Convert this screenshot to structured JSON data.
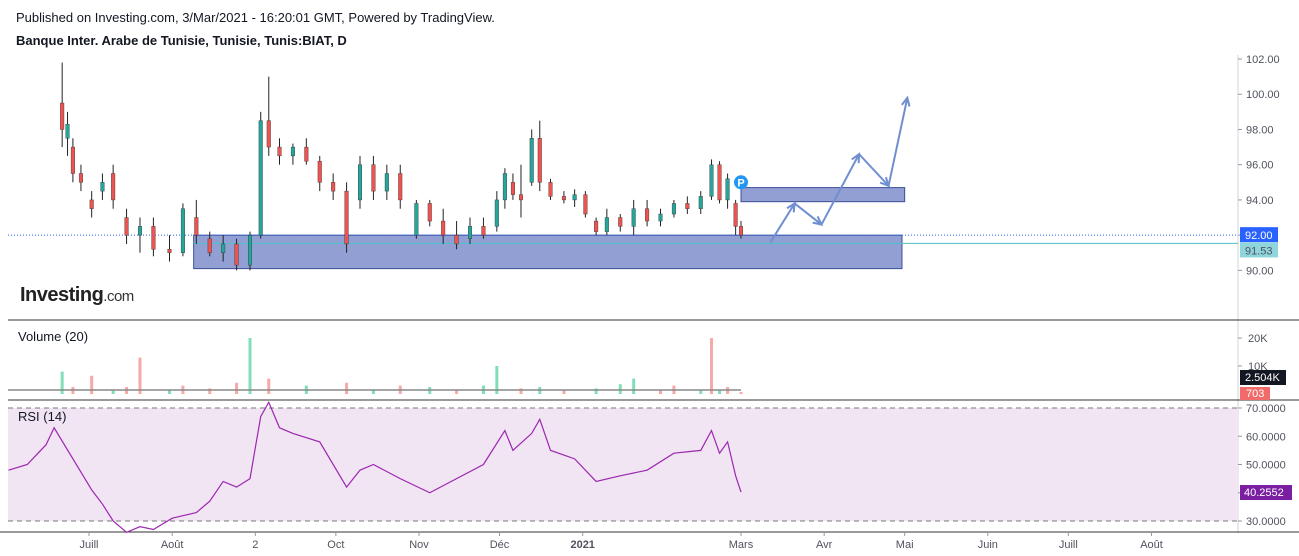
{
  "header": {
    "published": "Published on Investing.com, 3/Mar/2021 - 16:20:01 GMT, Powered by TradingView.",
    "symbol": "Banque Inter. Arabe de Tunisie, Tunisie, Tunis:BIAT, D"
  },
  "logo": {
    "brand": "Investing",
    "suffix": ".com"
  },
  "colors": {
    "up": "#26a69a",
    "down": "#ef5350",
    "zone": "#6c7fc4",
    "arrow": "#6f8fd0",
    "price_line": "#2962ff",
    "ma_line": "#4dc1c8",
    "rsi_line": "#9c27b0",
    "rsi_band": "#f1e4f3",
    "vol_up": "#7fe0b8",
    "vol_down": "#f7a9a7"
  },
  "chart_data": [
    {
      "type": "candlestick",
      "ylim": [
        89.0,
        102.0
      ],
      "price_axis_ticks": [
        "102.00",
        "100.00",
        "98.00",
        "96.00",
        "94.00",
        "92.00",
        "90.00"
      ],
      "last_price": "92.00",
      "ma_value": "91.53",
      "marker_label": "P",
      "annotations": {
        "support_zone": {
          "from": "2020-08-09",
          "to": "2021-04-30",
          "y_low": 90.1,
          "y_high": 92.0
        },
        "resistance_zone": {
          "from": "2021-03-01",
          "to": "2021-05-01",
          "y_low": 93.9,
          "y_high": 94.7
        },
        "projection_path": [
          [
            "2021-03-12",
            91.6
          ],
          [
            "2021-03-21",
            93.8
          ],
          [
            "2021-03-31",
            92.6
          ],
          [
            "2021-04-14",
            96.6
          ],
          [
            "2021-04-25",
            94.8
          ],
          [
            "2021-05-02",
            99.8
          ]
        ]
      },
      "candles": [
        [
          "2020-06-21",
          99.5,
          101.8,
          97.0,
          98.0
        ],
        [
          "2020-06-23",
          97.5,
          99.0,
          96.5,
          98.3
        ],
        [
          "2020-06-25",
          97.0,
          97.5,
          95.0,
          95.5
        ],
        [
          "2020-06-28",
          95.5,
          96.0,
          94.5,
          95.0
        ],
        [
          "2020-07-02",
          94.0,
          94.5,
          93.0,
          93.5
        ],
        [
          "2020-07-06",
          94.5,
          95.5,
          94.0,
          95.0
        ],
        [
          "2020-07-10",
          95.5,
          96.0,
          93.5,
          94.0
        ],
        [
          "2020-07-15",
          93.0,
          93.5,
          91.5,
          92.0
        ],
        [
          "2020-07-20",
          92.0,
          93.0,
          91.0,
          92.5
        ],
        [
          "2020-07-25",
          92.5,
          93.0,
          90.8,
          91.2
        ],
        [
          "2020-07-31",
          91.2,
          92.0,
          90.5,
          91.0
        ],
        [
          "2020-08-05",
          91.0,
          93.8,
          90.8,
          93.5
        ],
        [
          "2020-08-10",
          93.0,
          94.0,
          91.5,
          92.0
        ],
        [
          "2020-08-15",
          91.8,
          92.2,
          90.8,
          91.0
        ],
        [
          "2020-08-20",
          91.0,
          92.0,
          90.5,
          91.5
        ],
        [
          "2020-08-25",
          91.5,
          91.8,
          90.0,
          90.3
        ],
        [
          "2020-08-30",
          90.3,
          92.2,
          90.0,
          92.0
        ],
        [
          "2020-09-03",
          92.0,
          99.0,
          91.8,
          98.5
        ],
        [
          "2020-09-06",
          98.5,
          101.0,
          96.5,
          97.0
        ],
        [
          "2020-09-10",
          97.0,
          97.5,
          96.0,
          96.5
        ],
        [
          "2020-09-15",
          96.5,
          97.2,
          96.0,
          97.0
        ],
        [
          "2020-09-20",
          97.0,
          97.5,
          96.0,
          96.2
        ],
        [
          "2020-09-25",
          96.2,
          96.5,
          94.5,
          95.0
        ],
        [
          "2020-09-30",
          95.0,
          95.5,
          94.0,
          94.5
        ],
        [
          "2020-10-05",
          94.5,
          95.0,
          91.0,
          91.5
        ],
        [
          "2020-10-10",
          94.0,
          96.5,
          93.5,
          96.0
        ],
        [
          "2020-10-15",
          96.0,
          96.5,
          94.0,
          94.5
        ],
        [
          "2020-10-20",
          94.5,
          96.0,
          94.0,
          95.5
        ],
        [
          "2020-10-25",
          95.5,
          96.0,
          93.5,
          94.0
        ],
        [
          "2020-10-31",
          92.0,
          94.0,
          91.8,
          93.8
        ],
        [
          "2020-11-05",
          93.8,
          94.0,
          92.5,
          92.8
        ],
        [
          "2020-11-10",
          92.8,
          93.5,
          91.5,
          92.0
        ],
        [
          "2020-11-15",
          92.0,
          92.8,
          91.2,
          91.5
        ],
        [
          "2020-11-20",
          91.8,
          93.0,
          91.5,
          92.5
        ],
        [
          "2020-11-25",
          92.5,
          93.0,
          91.8,
          92.0
        ],
        [
          "2020-11-30",
          92.5,
          94.5,
          92.2,
          94.0
        ],
        [
          "2020-12-03",
          94.0,
          95.8,
          93.5,
          95.5
        ],
        [
          "2020-12-06",
          95.0,
          95.5,
          94.0,
          94.3
        ],
        [
          "2020-12-09",
          94.3,
          96.0,
          93.0,
          94.0
        ],
        [
          "2020-12-13",
          95.0,
          98.0,
          94.8,
          97.5
        ],
        [
          "2020-12-16",
          97.5,
          98.5,
          94.5,
          95.0
        ],
        [
          "2020-12-20",
          95.0,
          95.2,
          94.0,
          94.2
        ],
        [
          "2020-12-25",
          94.2,
          94.5,
          93.8,
          94.0
        ],
        [
          "2020-12-29",
          94.0,
          94.6,
          93.6,
          94.3
        ],
        [
          "2021-01-02",
          94.3,
          94.5,
          93.0,
          93.2
        ],
        [
          "2021-01-06",
          92.8,
          93.0,
          92.0,
          92.2
        ],
        [
          "2021-01-10",
          92.2,
          93.5,
          92.0,
          93.0
        ],
        [
          "2021-01-15",
          93.0,
          93.2,
          92.2,
          92.5
        ],
        [
          "2021-01-20",
          92.5,
          94.0,
          92.0,
          93.5
        ],
        [
          "2021-01-25",
          93.5,
          94.0,
          92.5,
          92.8
        ],
        [
          "2021-01-30",
          92.8,
          93.5,
          92.5,
          93.2
        ],
        [
          "2021-02-04",
          93.2,
          94.0,
          93.0,
          93.8
        ],
        [
          "2021-02-09",
          93.8,
          94.2,
          93.2,
          93.5
        ],
        [
          "2021-02-14",
          93.5,
          94.5,
          93.2,
          94.2
        ],
        [
          "2021-02-18",
          94.2,
          96.3,
          94.0,
          96.0
        ],
        [
          "2021-02-21",
          96.0,
          96.2,
          93.8,
          94.0
        ],
        [
          "2021-02-24",
          94.0,
          95.5,
          93.5,
          95.2
        ],
        [
          "2021-02-27",
          93.8,
          94.0,
          92.0,
          92.5
        ],
        [
          "2021-03-01",
          92.5,
          92.8,
          91.8,
          92.0
        ]
      ]
    },
    {
      "type": "bar",
      "title": "Volume (20)",
      "axis_ticks": [
        "20K",
        "10K"
      ],
      "last_ma_value": "2.504K",
      "last_value": "703",
      "bars": [
        [
          "2020-06-21",
          8000,
          "up"
        ],
        [
          "2020-06-25",
          2500,
          "down"
        ],
        [
          "2020-07-02",
          6500,
          "down"
        ],
        [
          "2020-07-10",
          1500,
          "up"
        ],
        [
          "2020-07-15",
          2500,
          "down"
        ],
        [
          "2020-07-20",
          13000,
          "down"
        ],
        [
          "2020-07-31",
          1500,
          "up"
        ],
        [
          "2020-08-05",
          3000,
          "down"
        ],
        [
          "2020-08-15",
          2000,
          "down"
        ],
        [
          "2020-08-25",
          4000,
          "down"
        ],
        [
          "2020-08-30",
          20000,
          "up"
        ],
        [
          "2020-09-06",
          5500,
          "down"
        ],
        [
          "2020-09-20",
          3000,
          "up"
        ],
        [
          "2020-10-05",
          4000,
          "down"
        ],
        [
          "2020-10-15",
          1500,
          "up"
        ],
        [
          "2020-10-25",
          3000,
          "down"
        ],
        [
          "2020-11-05",
          2500,
          "up"
        ],
        [
          "2020-11-15",
          1500,
          "down"
        ],
        [
          "2020-11-25",
          3000,
          "up"
        ],
        [
          "2020-11-30",
          10000,
          "up"
        ],
        [
          "2020-12-09",
          2000,
          "down"
        ],
        [
          "2020-12-16",
          2500,
          "up"
        ],
        [
          "2020-12-25",
          1500,
          "down"
        ],
        [
          "2021-01-06",
          2000,
          "up"
        ],
        [
          "2021-01-15",
          3500,
          "up"
        ],
        [
          "2021-01-20",
          5500,
          "up"
        ],
        [
          "2021-01-30",
          1500,
          "down"
        ],
        [
          "2021-02-04",
          3000,
          "down"
        ],
        [
          "2021-02-14",
          1500,
          "up"
        ],
        [
          "2021-02-18",
          20000,
          "down"
        ],
        [
          "2021-02-21",
          1500,
          "up"
        ],
        [
          "2021-02-24",
          2500,
          "down"
        ],
        [
          "2021-03-01",
          703,
          "down"
        ]
      ]
    },
    {
      "type": "line",
      "title": "RSI (14)",
      "ylim": [
        26.0,
        72.0
      ],
      "axis_ticks": [
        "70.0000",
        "60.0000",
        "50.0000",
        "40.0000",
        "30.0000"
      ],
      "last_value": "40.2552",
      "points": [
        [
          "2020-06-01",
          48
        ],
        [
          "2020-06-08",
          50
        ],
        [
          "2020-06-15",
          57
        ],
        [
          "2020-06-18",
          63
        ],
        [
          "2020-06-25",
          52
        ],
        [
          "2020-07-02",
          41
        ],
        [
          "2020-07-06",
          36
        ],
        [
          "2020-07-10",
          30
        ],
        [
          "2020-07-15",
          25
        ],
        [
          "2020-07-20",
          28
        ],
        [
          "2020-07-25",
          27
        ],
        [
          "2020-08-01",
          31
        ],
        [
          "2020-08-10",
          33
        ],
        [
          "2020-08-15",
          37
        ],
        [
          "2020-08-20",
          44
        ],
        [
          "2020-08-25",
          42
        ],
        [
          "2020-08-30",
          45
        ],
        [
          "2020-09-03",
          67
        ],
        [
          "2020-09-06",
          72
        ],
        [
          "2020-09-10",
          63
        ],
        [
          "2020-09-15",
          61
        ],
        [
          "2020-09-25",
          58
        ],
        [
          "2020-10-05",
          42
        ],
        [
          "2020-10-10",
          48
        ],
        [
          "2020-10-15",
          50
        ],
        [
          "2020-10-25",
          45
        ],
        [
          "2020-11-05",
          40
        ],
        [
          "2020-11-15",
          45
        ],
        [
          "2020-11-25",
          50
        ],
        [
          "2020-12-03",
          62
        ],
        [
          "2020-12-06",
          55
        ],
        [
          "2020-12-13",
          61
        ],
        [
          "2020-12-16",
          66
        ],
        [
          "2020-12-20",
          55
        ],
        [
          "2020-12-29",
          52
        ],
        [
          "2021-01-06",
          44
        ],
        [
          "2021-01-15",
          46
        ],
        [
          "2021-01-25",
          48
        ],
        [
          "2021-02-04",
          54
        ],
        [
          "2021-02-14",
          55
        ],
        [
          "2021-02-18",
          62
        ],
        [
          "2021-02-21",
          54
        ],
        [
          "2021-02-24",
          58
        ],
        [
          "2021-02-27",
          46
        ],
        [
          "2021-03-01",
          40.26
        ]
      ],
      "band": [
        30,
        70
      ]
    }
  ],
  "time_axis": [
    "Juill",
    "Août",
    "2",
    "Oct",
    "Nov",
    "Déc",
    "2021",
    "Mars",
    "Avr",
    "Mai",
    "Juin",
    "Juill",
    "Août"
  ]
}
